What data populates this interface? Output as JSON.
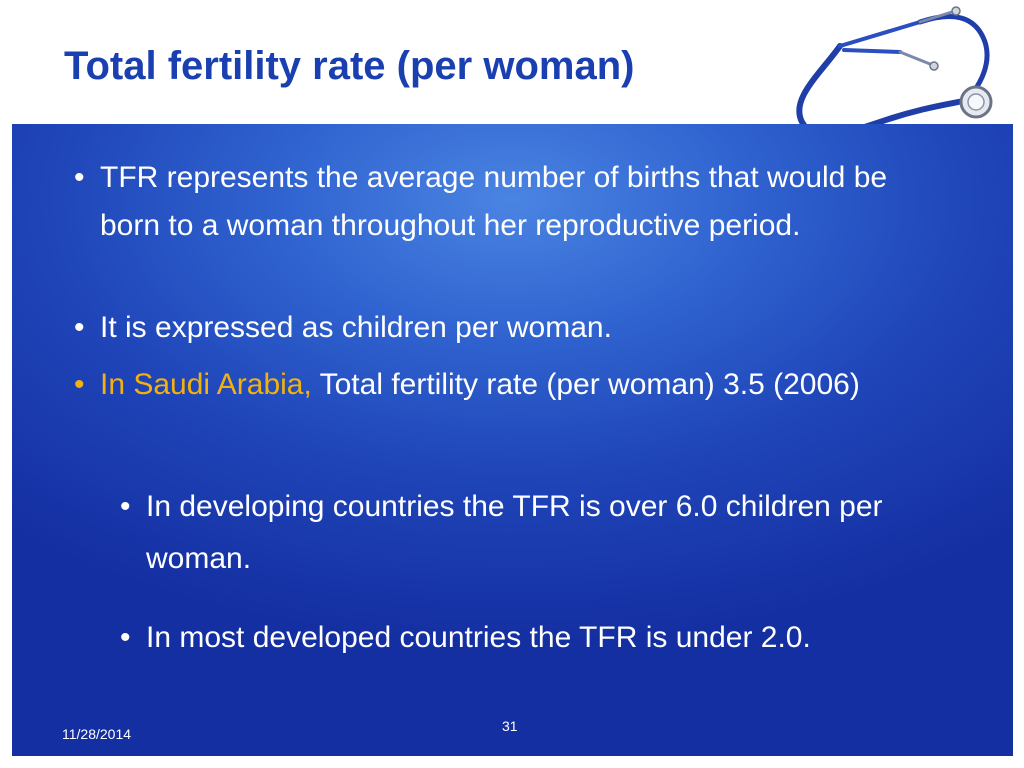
{
  "slide": {
    "title": "Total fertility rate (per woman)",
    "bullets": [
      {
        "text": "TFR represents the average number of births that would be born to a woman throughout her reproductive period."
      },
      {
        "text": "It is expressed as children per woman."
      },
      {
        "highlight": "In Saudi Arabia,",
        "text": " Total fertility rate (per woman) 3.5 (2006)"
      }
    ],
    "sub_bullets": [
      " In developing countries the TFR is over 6.0 children  per woman.",
      "In most developed countries the TFR is under 2.0."
    ],
    "bullet_glyph": "•",
    "date": "11/28/2014",
    "page_number": "31"
  },
  "colors": {
    "title": "#1a3fb0",
    "panel": "#2f62cf",
    "highlight": "#f2b10e",
    "text": "#ffffff"
  },
  "icons": {
    "decoration": "stethoscope-icon"
  }
}
